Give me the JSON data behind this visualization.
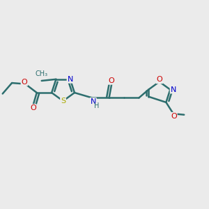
{
  "bg_color": "#ebebeb",
  "bond_color": "#2d6e6e",
  "bond_width": 1.8,
  "atom_colors": {
    "N": "#0000cc",
    "O": "#cc0000",
    "S": "#aaaa00",
    "C": "#2d6e6e",
    "H": "#555555"
  },
  "figsize": [
    3.0,
    3.0
  ],
  "dpi": 100
}
